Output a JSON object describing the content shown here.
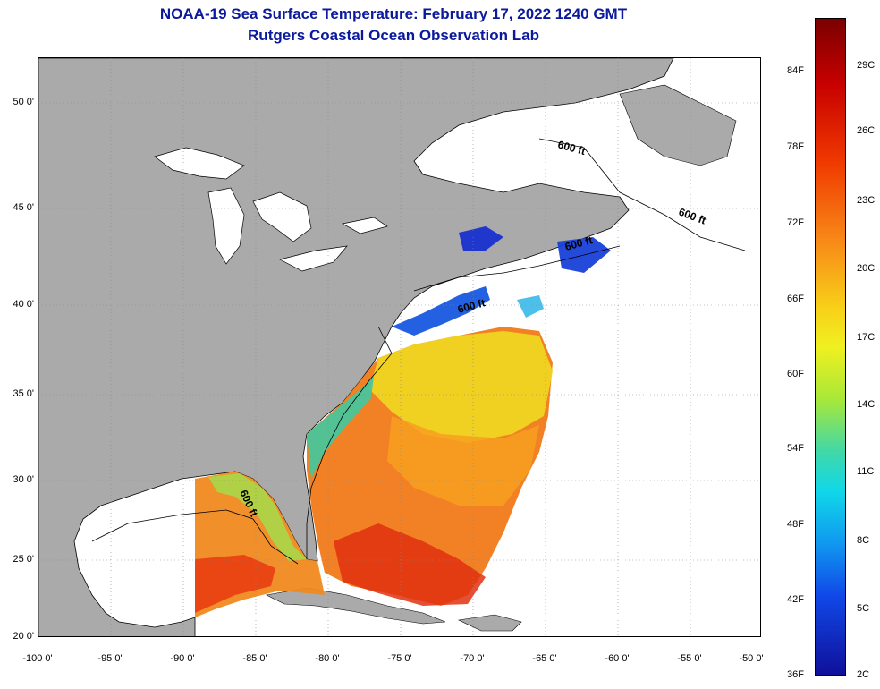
{
  "title": "NOAA-19 Sea Surface Temperature:  February 17, 2022 1240 GMT",
  "subtitle": "Rutgers Coastal Ocean Observation Lab",
  "lat_labels": [
    "50 0'",
    "45 0'",
    "40 0'",
    "35 0'",
    "30 0'",
    "25 0'",
    "20 0'"
  ],
  "lon_labels": [
    "-100 0'",
    "-95 0'",
    "-90 0'",
    "-85 0'",
    "-80 0'",
    "-75 0'",
    "-70 0'",
    "-65 0'",
    "-60 0'",
    "-55 0'",
    "-50 0'"
  ],
  "contour_labels": [
    "600 ft",
    "600 ft",
    "600 ft",
    "600 ft",
    "600 ft"
  ],
  "colorbar": {
    "fahrenheit": [
      "84F",
      "78F",
      "72F",
      "66F",
      "60F",
      "54F",
      "48F",
      "42F",
      "36F"
    ],
    "celsius": [
      "29C",
      "26C",
      "23C",
      "20C",
      "17C",
      "14C",
      "11C",
      "8C",
      "5C",
      "2C"
    ]
  },
  "colors": {
    "title": "#0b1a9c",
    "land": "#aaaaaa",
    "water_nodata": "#ffffff"
  }
}
